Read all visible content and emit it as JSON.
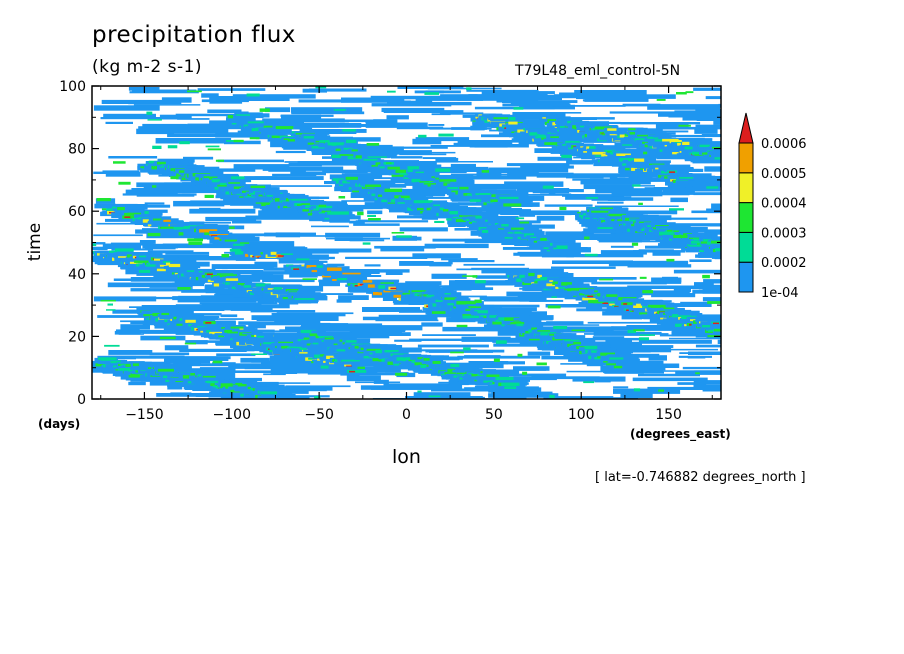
{
  "chart_data": {
    "type": "heatmap",
    "title": "precipitation flux",
    "units": "(kg m-2 s-1)",
    "experiment": "T79L48_eml_control-5N",
    "xlabel": "lon",
    "ylabel": "time",
    "x_unit": "(degrees_east)",
    "y_unit": "(days)",
    "xlim": [
      -180,
      180
    ],
    "ylim": [
      0,
      100
    ],
    "x_ticks": [
      -150,
      -100,
      -50,
      0,
      50,
      100,
      150
    ],
    "y_ticks": [
      0,
      20,
      40,
      60,
      80,
      100
    ],
    "note": "[ lat=-0.746882 degrees_north ]",
    "colorbar": {
      "levels": [
        "1e-04",
        "0.0002",
        "0.0003",
        "0.0004",
        "0.0005",
        "0.0006"
      ],
      "colors": [
        "#1e96f0",
        "#00dc96",
        "#1ee632",
        "#f0f028",
        "#f0a000",
        "#dc1e1e"
      ],
      "extend": "max"
    },
    "bands": [
      {
        "x0": -175,
        "t0": 62,
        "x1": 30,
        "t1": 28,
        "intensity": 4
      },
      {
        "x0": -150,
        "t0": 28,
        "x1": -30,
        "t1": 10,
        "intensity": 3
      },
      {
        "x0": -180,
        "t0": 48,
        "x1": -60,
        "t1": 32,
        "intensity": 3
      },
      {
        "x0": -150,
        "t0": 75,
        "x1": -40,
        "t1": 58,
        "intensity": 2
      },
      {
        "x0": -100,
        "t0": 90,
        "x1": 60,
        "t1": 62,
        "intensity": 2
      },
      {
        "x0": 40,
        "t0": 90,
        "x1": 160,
        "t1": 70,
        "intensity": 3
      },
      {
        "x0": 60,
        "t0": 40,
        "x1": 180,
        "t1": 22,
        "intensity": 3
      },
      {
        "x0": 0,
        "t0": 35,
        "x1": 120,
        "t1": 12,
        "intensity": 2
      },
      {
        "x0": 80,
        "t0": 88,
        "x1": 180,
        "t1": 78,
        "intensity": 3
      },
      {
        "x0": -60,
        "t0": 20,
        "x1": 60,
        "t1": 5,
        "intensity": 2
      },
      {
        "x0": 100,
        "t0": 60,
        "x1": 180,
        "t1": 48,
        "intensity": 2
      },
      {
        "x0": -180,
        "t0": 12,
        "x1": -80,
        "t1": 2,
        "intensity": 2
      },
      {
        "x0": -40,
        "t0": 70,
        "x1": 90,
        "t1": 48,
        "intensity": 2
      }
    ]
  }
}
